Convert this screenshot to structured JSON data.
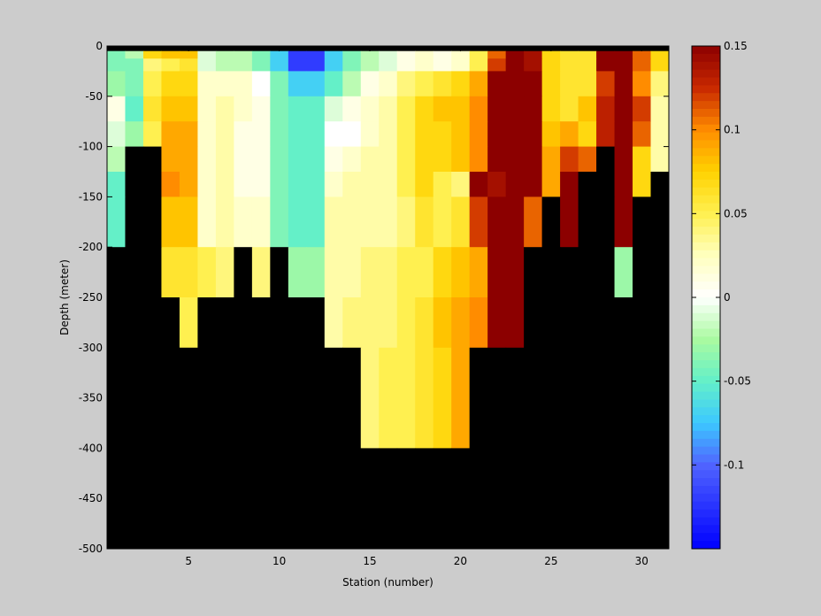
{
  "chart_data": {
    "type": "heatmap",
    "title": "",
    "xlabel": "Station (number)",
    "ylabel": "Depth (meter)",
    "xlim": [
      1,
      31
    ],
    "ylim": [
      -500,
      0
    ],
    "xticks": [
      5,
      10,
      15,
      20,
      25,
      30
    ],
    "yticks": [
      0,
      -50,
      -100,
      -150,
      -200,
      -250,
      -300,
      -350,
      -400,
      -450,
      -500
    ],
    "colorbar": {
      "colormap": "jet-like with white at zero",
      "range": [
        -0.15,
        0.15
      ],
      "ticks": [
        0.15,
        0.1,
        0.05,
        0,
        -0.05,
        -0.1
      ],
      "tick_labels": [
        "0.15",
        "0.1",
        "0.05",
        "0",
        "-0.05",
        "-0.1"
      ]
    },
    "no_data_color": "#000000",
    "stations": [
      1,
      2,
      3,
      4,
      5,
      6,
      7,
      8,
      9,
      10,
      11,
      12,
      13,
      14,
      15,
      16,
      17,
      18,
      19,
      20,
      21,
      22,
      23,
      24,
      25,
      26,
      27,
      28,
      29,
      30,
      31
    ],
    "depth_bands": [
      [
        -5,
        0
      ],
      [
        -12.5,
        -5
      ],
      [
        -25,
        -12.5
      ],
      [
        -50,
        -25
      ],
      [
        -75,
        -50
      ],
      [
        -100,
        -75
      ],
      [
        -125,
        -100
      ],
      [
        -150,
        -125
      ],
      [
        -200,
        -150
      ],
      [
        -250,
        -200
      ],
      [
        -300,
        -250
      ],
      [
        -400,
        -300
      ],
      [
        -500,
        -400
      ]
    ],
    "values": [
      [
        null,
        null,
        null,
        null,
        null,
        null,
        null,
        null,
        null,
        null,
        null,
        null,
        null,
        null,
        null,
        null,
        null,
        null,
        null,
        null,
        null,
        null,
        null,
        null,
        null,
        null,
        null,
        null,
        null,
        null,
        null
      ],
      [
        -0.04,
        -0.02,
        0.07,
        0.08,
        0.08,
        -0.01,
        -0.02,
        -0.02,
        -0.04,
        -0.07,
        -0.12,
        -0.12,
        -0.07,
        -0.04,
        -0.02,
        -0.01,
        0.01,
        0.02,
        0.01,
        0.02,
        0.05,
        0.11,
        0.15,
        0.14,
        0.07,
        0.06,
        0.06,
        0.15,
        0.15,
        0.11,
        0.07
      ],
      [
        -0.04,
        -0.04,
        0.04,
        0.05,
        0.06,
        -0.01,
        -0.02,
        -0.02,
        -0.04,
        -0.07,
        -0.12,
        -0.12,
        -0.07,
        -0.04,
        -0.02,
        -0.01,
        0.01,
        0.02,
        0.01,
        0.02,
        0.05,
        0.12,
        0.15,
        0.14,
        0.07,
        0.06,
        0.06,
        0.15,
        0.15,
        0.11,
        0.07
      ],
      [
        -0.03,
        -0.04,
        0.05,
        0.07,
        0.07,
        0.02,
        0.02,
        0.02,
        0.0,
        -0.04,
        -0.07,
        -0.07,
        -0.05,
        -0.02,
        0.01,
        0.02,
        0.04,
        0.05,
        0.06,
        0.07,
        0.09,
        0.15,
        0.15,
        0.15,
        0.07,
        0.06,
        0.06,
        0.12,
        0.15,
        0.1,
        0.04
      ],
      [
        0.01,
        -0.05,
        0.06,
        0.08,
        0.08,
        0.02,
        0.03,
        0.02,
        0.01,
        -0.04,
        -0.05,
        -0.05,
        -0.01,
        0.01,
        0.02,
        0.03,
        0.05,
        0.07,
        0.08,
        0.08,
        0.1,
        0.15,
        0.15,
        0.15,
        0.07,
        0.06,
        0.08,
        0.13,
        0.15,
        0.12,
        0.03
      ],
      [
        -0.01,
        -0.03,
        0.05,
        0.09,
        0.09,
        0.02,
        0.03,
        0.01,
        0.01,
        -0.04,
        -0.05,
        -0.05,
        0.0,
        0.0,
        0.02,
        0.03,
        0.05,
        0.07,
        0.07,
        0.08,
        0.1,
        0.15,
        0.15,
        0.15,
        0.08,
        0.09,
        0.07,
        0.13,
        0.15,
        0.11,
        0.03
      ],
      [
        -0.02,
        null,
        null,
        0.09,
        0.09,
        0.02,
        0.03,
        0.01,
        0.01,
        -0.04,
        -0.05,
        -0.05,
        0.01,
        0.02,
        0.03,
        0.03,
        0.05,
        0.07,
        0.07,
        0.08,
        0.1,
        0.15,
        0.15,
        0.15,
        0.09,
        0.12,
        0.11,
        null,
        0.15,
        0.07,
        0.03
      ],
      [
        -0.05,
        null,
        null,
        0.1,
        0.09,
        0.02,
        0.03,
        0.01,
        0.01,
        -0.04,
        -0.05,
        -0.05,
        0.02,
        0.03,
        0.03,
        0.03,
        0.05,
        0.07,
        0.05,
        0.04,
        0.15,
        0.14,
        0.15,
        0.15,
        0.09,
        0.15,
        null,
        null,
        0.15,
        0.07,
        null
      ],
      [
        -0.05,
        null,
        null,
        0.08,
        0.08,
        0.02,
        0.03,
        0.02,
        0.02,
        -0.04,
        -0.05,
        -0.05,
        0.03,
        0.03,
        0.03,
        0.03,
        0.04,
        0.06,
        0.05,
        0.06,
        0.12,
        0.15,
        0.15,
        0.11,
        null,
        0.15,
        null,
        null,
        0.15,
        null,
        null
      ],
      [
        null,
        null,
        null,
        0.06,
        0.06,
        0.05,
        0.04,
        null,
        0.04,
        null,
        -0.03,
        -0.03,
        0.03,
        0.03,
        0.04,
        0.04,
        0.05,
        0.05,
        0.07,
        0.08,
        0.09,
        0.15,
        0.15,
        null,
        null,
        null,
        null,
        null,
        -0.03,
        null,
        null
      ],
      [
        null,
        null,
        null,
        null,
        0.05,
        null,
        null,
        null,
        null,
        null,
        null,
        null,
        0.03,
        0.04,
        0.04,
        0.04,
        0.05,
        0.06,
        0.08,
        0.09,
        0.1,
        0.15,
        0.15,
        null,
        null,
        null,
        null,
        null,
        null,
        null,
        null
      ],
      [
        null,
        null,
        null,
        null,
        null,
        null,
        null,
        null,
        null,
        null,
        null,
        null,
        null,
        null,
        0.04,
        0.05,
        0.05,
        0.06,
        0.07,
        0.09,
        null,
        null,
        null,
        null,
        null,
        null,
        null,
        null,
        null,
        null,
        null
      ],
      [
        null,
        null,
        null,
        null,
        null,
        null,
        null,
        null,
        null,
        null,
        null,
        null,
        null,
        null,
        null,
        null,
        null,
        null,
        null,
        null,
        null,
        null,
        null,
        null,
        null,
        null,
        null,
        null,
        null,
        null,
        null
      ]
    ]
  }
}
